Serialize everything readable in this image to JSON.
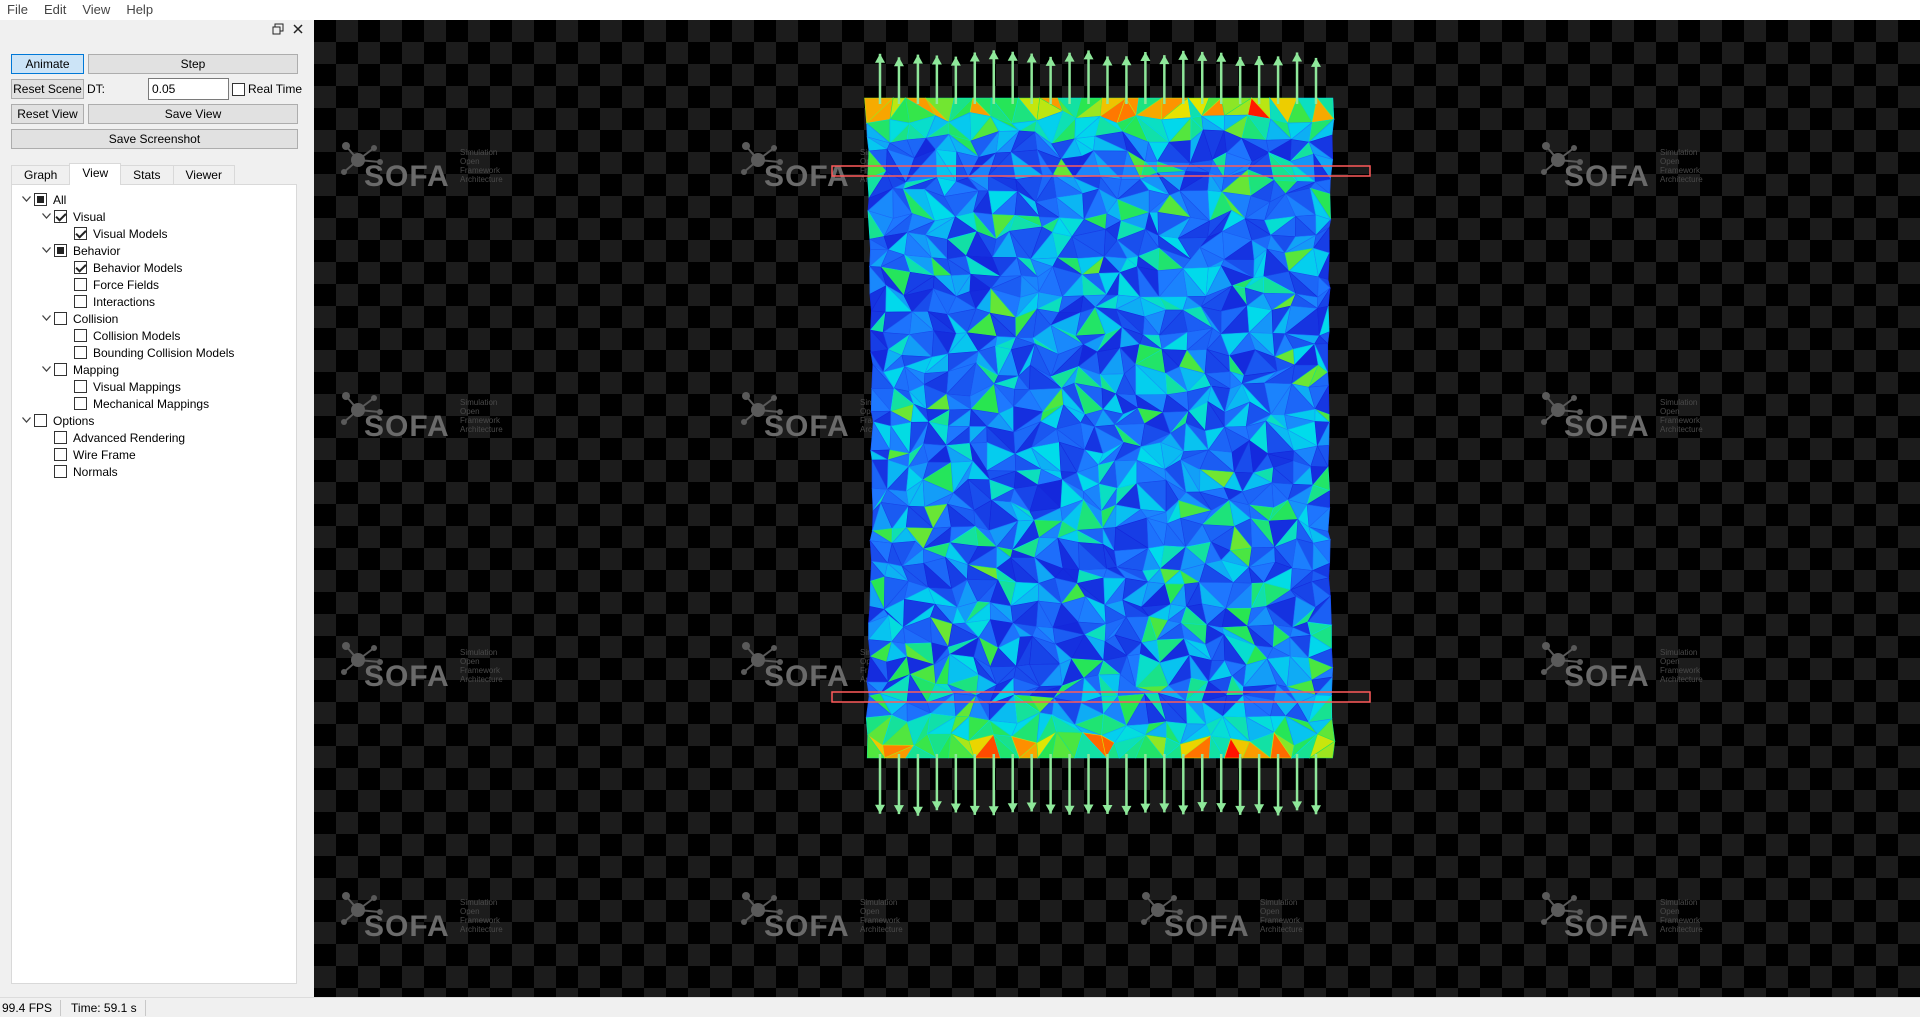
{
  "menu": [
    "File",
    "Edit",
    "View",
    "Help"
  ],
  "controls": {
    "animate": "Animate",
    "step": "Step",
    "reset_scene": "Reset Scene",
    "dt_label": "DT:",
    "dt_value": "0.05",
    "real_time": "Real Time",
    "reset_view": "Reset View",
    "save_view": "Save View",
    "save_screenshot": "Save Screenshot"
  },
  "tabs": [
    "Graph",
    "View",
    "Stats",
    "Viewer"
  ],
  "selected_tab": "View",
  "tree": [
    {
      "label": "All",
      "level": 0,
      "state": "partial",
      "expand": true
    },
    {
      "label": "Visual",
      "level": 1,
      "state": "checked",
      "expand": true
    },
    {
      "label": "Visual Models",
      "level": 2,
      "state": "checked",
      "expand": false
    },
    {
      "label": "Behavior",
      "level": 1,
      "state": "partial",
      "expand": true
    },
    {
      "label": "Behavior Models",
      "level": 2,
      "state": "checked",
      "expand": false
    },
    {
      "label": "Force Fields",
      "level": 2,
      "state": "unchecked",
      "expand": false
    },
    {
      "label": "Interactions",
      "level": 2,
      "state": "unchecked",
      "expand": false
    },
    {
      "label": "Collision",
      "level": 1,
      "state": "unchecked",
      "expand": true
    },
    {
      "label": "Collision Models",
      "level": 2,
      "state": "unchecked",
      "expand": false
    },
    {
      "label": "Bounding Collision Models",
      "level": 2,
      "state": "unchecked",
      "expand": false
    },
    {
      "label": "Mapping",
      "level": 1,
      "state": "unchecked",
      "expand": true
    },
    {
      "label": "Visual Mappings",
      "level": 2,
      "state": "unchecked",
      "expand": false
    },
    {
      "label": "Mechanical Mappings",
      "level": 2,
      "state": "unchecked",
      "expand": false
    },
    {
      "label": "Options",
      "level": 0,
      "state": "unchecked",
      "expand": true
    },
    {
      "label": "Advanced Rendering",
      "level": 1,
      "state": "unchecked",
      "expand": false
    },
    {
      "label": "Wire Frame",
      "level": 1,
      "state": "unchecked",
      "expand": false
    },
    {
      "label": "Normals",
      "level": 1,
      "state": "unchecked",
      "expand": false
    }
  ],
  "watermark": {
    "text": "SOFA",
    "subtitle": [
      "Simulation",
      "Open",
      "Framework",
      "Architecture"
    ]
  },
  "status": {
    "fps": "99.4 FPS",
    "time": "Time: 59.1 s"
  },
  "colors": {
    "mesh_low": "#1a3fe0",
    "mesh_mid": "#00d8e8",
    "mesh_high": "#ff2a00",
    "arrows": "#8ee89a",
    "box_outline": "#ff5a5a"
  }
}
